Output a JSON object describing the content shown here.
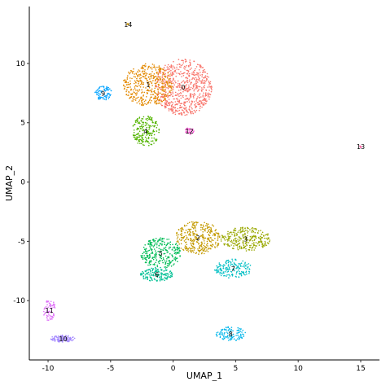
{
  "chart_data": {
    "type": "scatter",
    "title": "",
    "xlabel": "UMAP_1",
    "ylabel": "UMAP_2",
    "xlim": [
      -11.5,
      16.5
    ],
    "ylim": [
      -15,
      14.8
    ],
    "xticks": [
      -10,
      -5,
      0,
      5,
      10,
      15
    ],
    "yticks": [
      -10,
      -5,
      0,
      5,
      10
    ],
    "grid": false,
    "legend": "none",
    "clusters": [
      {
        "label": "0",
        "color": "#F8766D",
        "cx": 0.8,
        "cy": 8.0,
        "rx": 2.3,
        "ry": 2.4,
        "n": 700
      },
      {
        "label": "1",
        "color": "#E38900",
        "cx": -2.0,
        "cy": 8.2,
        "rx": 2.0,
        "ry": 1.8,
        "n": 420
      },
      {
        "label": "2",
        "color": "#C49A00",
        "cx": 2.0,
        "cy": -4.7,
        "rx": 1.8,
        "ry": 1.4,
        "n": 330
      },
      {
        "label": "3",
        "color": "#99A800",
        "cx": 5.8,
        "cy": -4.8,
        "rx": 2.0,
        "ry": 1.0,
        "n": 280
      },
      {
        "label": "4",
        "color": "#53B400",
        "cx": -2.2,
        "cy": 4.3,
        "rx": 1.1,
        "ry": 1.3,
        "n": 200
      },
      {
        "label": "5",
        "color": "#00BC56",
        "cx": -1.0,
        "cy": -6.0,
        "rx": 1.6,
        "ry": 1.3,
        "n": 280
      },
      {
        "label": "6",
        "color": "#00C094",
        "cx": -1.3,
        "cy": -7.8,
        "rx": 1.3,
        "ry": 0.6,
        "n": 150
      },
      {
        "label": "7",
        "color": "#00BFC4",
        "cx": 4.8,
        "cy": -7.3,
        "rx": 1.5,
        "ry": 0.8,
        "n": 160
      },
      {
        "label": "8",
        "color": "#00B6EB",
        "cx": 4.6,
        "cy": -12.8,
        "rx": 1.2,
        "ry": 0.6,
        "n": 110
      },
      {
        "label": "9",
        "color": "#06A4FF",
        "cx": -5.6,
        "cy": 7.5,
        "rx": 0.7,
        "ry": 0.6,
        "n": 80
      },
      {
        "label": "10",
        "color": "#A58AFF",
        "cx": -8.8,
        "cy": -13.2,
        "rx": 1.0,
        "ry": 0.3,
        "n": 110
      },
      {
        "label": "11",
        "color": "#DF70F8",
        "cx": -9.9,
        "cy": -10.8,
        "rx": 0.5,
        "ry": 0.9,
        "n": 70
      },
      {
        "label": "12",
        "color": "#FB61D7",
        "cx": 1.3,
        "cy": 4.3,
        "rx": 0.4,
        "ry": 0.3,
        "n": 35
      },
      {
        "label": "13",
        "color": "#FF66A8",
        "cx": 15.0,
        "cy": 3.0,
        "rx": 0.12,
        "ry": 0.12,
        "n": 6
      },
      {
        "label": "14",
        "color": "#CD9600",
        "cx": -3.6,
        "cy": 13.3,
        "rx": 0.12,
        "ry": 0.08,
        "n": 4
      }
    ]
  }
}
